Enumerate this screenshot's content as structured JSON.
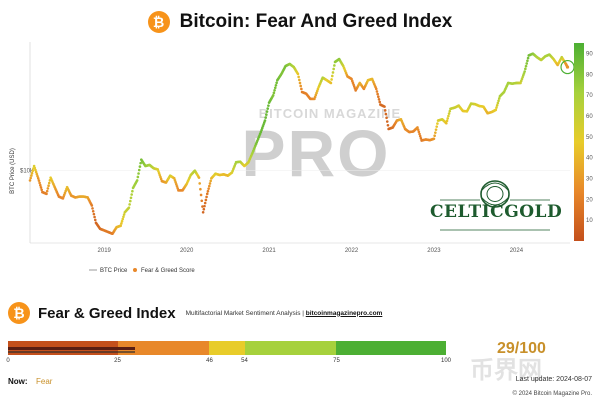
{
  "header": {
    "title": "Bitcoin: Fear And Greed Index",
    "logo_glyph": "₿"
  },
  "watermark": {
    "top": "BITCOIN MAGAZINE",
    "main": "PRO"
  },
  "partner_logo": {
    "text": "CELTICGOLD"
  },
  "chart_data": {
    "type": "scatter",
    "title": "Bitcoin: Fear And Greed Index",
    "ylabel": "BTC Price (USD)",
    "ytick_labels": [
      "$10k"
    ],
    "x_tick_labels": [
      "2019",
      "2020",
      "2021",
      "2022",
      "2023",
      "2024"
    ],
    "x_range": [
      2018.1,
      2024.65
    ],
    "y_scale": "log",
    "y_range": [
      3000,
      85000
    ],
    "colorbar": {
      "ticks": [
        10,
        20,
        30,
        40,
        50,
        60,
        70,
        80,
        90
      ],
      "range": [
        0,
        95
      ]
    },
    "legend": [
      "BTC Price",
      "Fear & Greed Score"
    ],
    "legend_position": "bottom-left",
    "latest_point_highlighted": true,
    "series": [
      {
        "name": "BTC Price",
        "points": [
          [
            2018.1,
            8500,
            30
          ],
          [
            2018.15,
            10800,
            55
          ],
          [
            2018.2,
            8800,
            30
          ],
          [
            2018.25,
            7000,
            20
          ],
          [
            2018.3,
            6800,
            22
          ],
          [
            2018.35,
            8900,
            50
          ],
          [
            2018.4,
            7600,
            35
          ],
          [
            2018.45,
            6500,
            22
          ],
          [
            2018.5,
            6300,
            25
          ],
          [
            2018.55,
            7600,
            45
          ],
          [
            2018.6,
            6600,
            30
          ],
          [
            2018.65,
            6400,
            30
          ],
          [
            2018.7,
            6500,
            35
          ],
          [
            2018.75,
            6500,
            38
          ],
          [
            2018.8,
            6400,
            35
          ],
          [
            2018.85,
            5600,
            20
          ],
          [
            2018.9,
            4200,
            10
          ],
          [
            2018.95,
            3800,
            12
          ],
          [
            2019.0,
            3700,
            20
          ],
          [
            2019.05,
            3600,
            18
          ],
          [
            2019.1,
            3500,
            20
          ],
          [
            2019.15,
            3900,
            40
          ],
          [
            2019.2,
            4000,
            45
          ],
          [
            2019.25,
            5000,
            60
          ],
          [
            2019.3,
            5400,
            65
          ],
          [
            2019.35,
            7500,
            75
          ],
          [
            2019.4,
            8500,
            78
          ],
          [
            2019.45,
            12000,
            88
          ],
          [
            2019.5,
            10800,
            80
          ],
          [
            2019.55,
            11000,
            75
          ],
          [
            2019.6,
            10400,
            65
          ],
          [
            2019.65,
            10200,
            55
          ],
          [
            2019.7,
            8400,
            30
          ],
          [
            2019.75,
            8200,
            35
          ],
          [
            2019.8,
            9200,
            60
          ],
          [
            2019.85,
            8800,
            40
          ],
          [
            2019.9,
            7200,
            25
          ],
          [
            2019.95,
            7200,
            25
          ],
          [
            2020.0,
            8000,
            45
          ],
          [
            2020.05,
            9300,
            60
          ],
          [
            2020.1,
            10000,
            70
          ],
          [
            2020.15,
            8900,
            40
          ],
          [
            2020.2,
            5000,
            10
          ],
          [
            2020.25,
            6800,
            18
          ],
          [
            2020.3,
            8800,
            40
          ],
          [
            2020.35,
            9500,
            55
          ],
          [
            2020.4,
            9300,
            45
          ],
          [
            2020.45,
            9400,
            45
          ],
          [
            2020.5,
            9200,
            42
          ],
          [
            2020.55,
            9700,
            55
          ],
          [
            2020.6,
            11500,
            75
          ],
          [
            2020.65,
            11600,
            72
          ],
          [
            2020.7,
            10800,
            50
          ],
          [
            2020.75,
            11500,
            60
          ],
          [
            2020.8,
            13500,
            75
          ],
          [
            2020.85,
            16000,
            88
          ],
          [
            2020.9,
            19000,
            92
          ],
          [
            2020.95,
            23000,
            92
          ],
          [
            2021.0,
            31000,
            92
          ],
          [
            2021.05,
            35000,
            85
          ],
          [
            2021.1,
            45000,
            90
          ],
          [
            2021.15,
            50000,
            85
          ],
          [
            2021.2,
            57000,
            88
          ],
          [
            2021.25,
            59000,
            80
          ],
          [
            2021.3,
            56000,
            70
          ],
          [
            2021.35,
            50000,
            48
          ],
          [
            2021.4,
            37000,
            20
          ],
          [
            2021.45,
            36000,
            22
          ],
          [
            2021.5,
            33000,
            22
          ],
          [
            2021.55,
            33000,
            28
          ],
          [
            2021.6,
            40000,
            50
          ],
          [
            2021.65,
            47000,
            72
          ],
          [
            2021.7,
            45000,
            50
          ],
          [
            2021.75,
            43000,
            45
          ],
          [
            2021.8,
            61000,
            80
          ],
          [
            2021.85,
            64000,
            82
          ],
          [
            2021.9,
            57000,
            60
          ],
          [
            2021.95,
            48000,
            30
          ],
          [
            2022.0,
            46000,
            25
          ],
          [
            2022.05,
            38000,
            20
          ],
          [
            2022.1,
            43000,
            40
          ],
          [
            2022.15,
            39000,
            25
          ],
          [
            2022.2,
            45000,
            45
          ],
          [
            2022.25,
            46000,
            42
          ],
          [
            2022.3,
            39000,
            25
          ],
          [
            2022.35,
            30000,
            12
          ],
          [
            2022.4,
            29000,
            12
          ],
          [
            2022.45,
            20000,
            10
          ],
          [
            2022.5,
            20500,
            15
          ],
          [
            2022.55,
            23000,
            28
          ],
          [
            2022.6,
            23500,
            40
          ],
          [
            2022.65,
            20000,
            28
          ],
          [
            2022.7,
            19000,
            25
          ],
          [
            2022.75,
            19200,
            22
          ],
          [
            2022.8,
            20500,
            28
          ],
          [
            2022.85,
            16500,
            18
          ],
          [
            2022.9,
            16800,
            25
          ],
          [
            2022.95,
            16600,
            25
          ],
          [
            2023.0,
            17000,
            30
          ],
          [
            2023.05,
            23000,
            55
          ],
          [
            2023.1,
            23500,
            60
          ],
          [
            2023.15,
            22000,
            45
          ],
          [
            2023.2,
            28000,
            65
          ],
          [
            2023.25,
            28500,
            62
          ],
          [
            2023.3,
            29500,
            58
          ],
          [
            2023.35,
            27000,
            48
          ],
          [
            2023.4,
            26800,
            50
          ],
          [
            2023.45,
            30500,
            65
          ],
          [
            2023.5,
            30200,
            58
          ],
          [
            2023.55,
            29300,
            52
          ],
          [
            2023.6,
            29000,
            50
          ],
          [
            2023.65,
            26000,
            40
          ],
          [
            2023.7,
            26500,
            45
          ],
          [
            2023.75,
            27500,
            50
          ],
          [
            2023.8,
            34500,
            72
          ],
          [
            2023.85,
            37000,
            72
          ],
          [
            2023.9,
            43000,
            75
          ],
          [
            2023.95,
            42500,
            72
          ],
          [
            2024.0,
            43000,
            70
          ],
          [
            2024.05,
            43000,
            60
          ],
          [
            2024.1,
            52000,
            78
          ],
          [
            2024.15,
            68000,
            90
          ],
          [
            2024.2,
            70000,
            82
          ],
          [
            2024.25,
            66000,
            72
          ],
          [
            2024.3,
            63000,
            65
          ],
          [
            2024.35,
            67000,
            72
          ],
          [
            2024.4,
            69000,
            75
          ],
          [
            2024.45,
            64000,
            60
          ],
          [
            2024.5,
            58000,
            40
          ],
          [
            2024.55,
            66000,
            65
          ],
          [
            2024.6,
            59000,
            30
          ],
          [
            2024.62,
            56000,
            29
          ]
        ]
      },
      {
        "name": "Fear & Greed Score"
      }
    ]
  },
  "fear_greed": {
    "title": "Fear & Greed Index",
    "subtitle": "Multifactorial Market Sentiment Analysis |",
    "link": "bitcoinmagazinepro.com",
    "score_value": 29,
    "score_text": "29/100",
    "gauge_ticks": [
      "0",
      "25",
      "46",
      "54",
      "75",
      "100"
    ],
    "now_label": "Now:",
    "now_value": "Fear",
    "last_update": "Last update: 2024-08-07",
    "copyright": "© 2024 Bitcoin Magazine Pro."
  },
  "colors": {
    "extreme_fear": "#c4501c",
    "fear": "#e8882a",
    "neutral": "#e8cc2a",
    "greed": "#a6d13c",
    "extreme_greed": "#4caf33",
    "accent": "#f7931a",
    "score": "#c8902a"
  },
  "wm_cn": "币界网"
}
